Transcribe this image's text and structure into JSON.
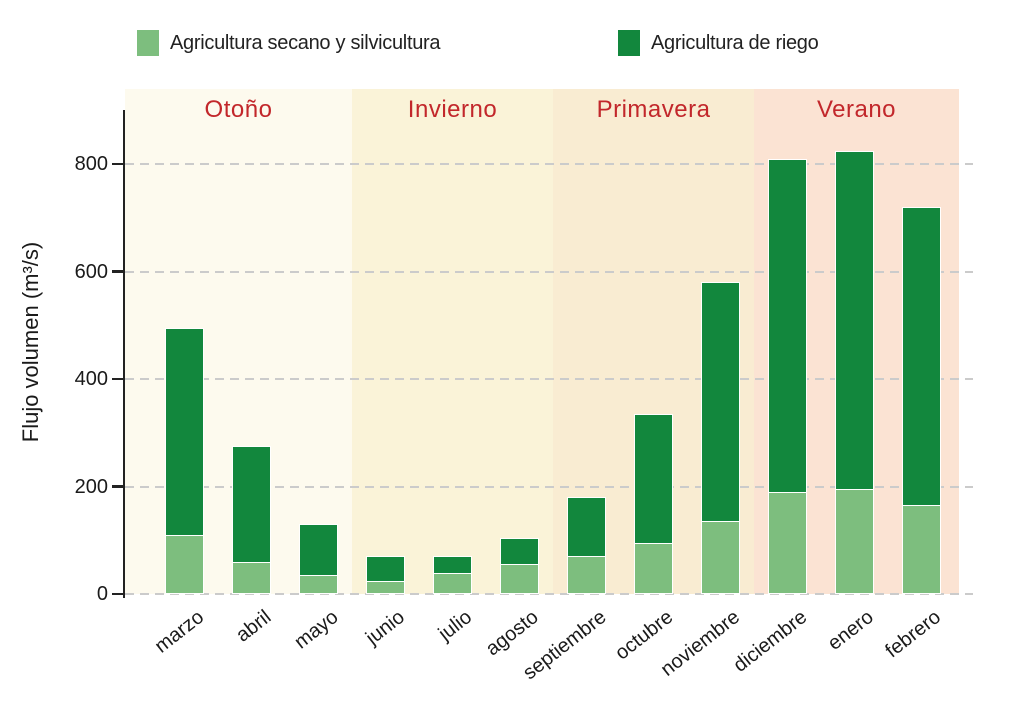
{
  "legend": {
    "items": [
      {
        "label": "Agricultura secano y silvicultura",
        "color": "#7dbe7e"
      },
      {
        "label": "Agricultura de riego",
        "color": "#12873d"
      }
    ]
  },
  "y_axis": {
    "label": "Flujo volumen (m³/s)",
    "ticks": [
      0,
      200,
      400,
      600,
      800
    ]
  },
  "chart_data": {
    "type": "bar",
    "stacked": true,
    "title": "",
    "xlabel": "",
    "ylabel": "Flujo volumen (m³/s)",
    "ylim": [
      0,
      940
    ],
    "yticks": [
      0,
      200,
      400,
      600,
      800
    ],
    "grid": "horizontal-dashed",
    "legend_position": "top",
    "categories": [
      "marzo",
      "abril",
      "mayo",
      "junio",
      "julio",
      "agosto",
      "septiembre",
      "octubre",
      "noviembre",
      "diciembre",
      "enero",
      "febrero"
    ],
    "series": [
      {
        "name": "Agricultura secano y silvicultura",
        "color": "#7dbe7e",
        "values": [
          110,
          60,
          35,
          25,
          40,
          55,
          70,
          95,
          135,
          190,
          195,
          165
        ]
      },
      {
        "name": "Agricultura de riego",
        "color": "#12873d",
        "values": [
          385,
          215,
          95,
          45,
          30,
          50,
          110,
          240,
          445,
          620,
          630,
          555
        ]
      }
    ],
    "totals": [
      495,
      275,
      130,
      70,
      70,
      105,
      180,
      335,
      580,
      810,
      825,
      720
    ],
    "season_bands": [
      {
        "label": "Otoño",
        "months": [
          "marzo",
          "abril",
          "mayo"
        ],
        "color": "#fdfaee"
      },
      {
        "label": "Invierno",
        "months": [
          "junio",
          "julio",
          "agosto"
        ],
        "color": "#faf3d8"
      },
      {
        "label": "Primavera",
        "months": [
          "septiembre",
          "octubre",
          "noviembre"
        ],
        "color": "#f9ecd2"
      },
      {
        "label": "Verano",
        "months": [
          "diciembre",
          "enero",
          "febrero"
        ],
        "color": "#fbe3d3"
      }
    ],
    "season_label_color": "#c2272b"
  }
}
